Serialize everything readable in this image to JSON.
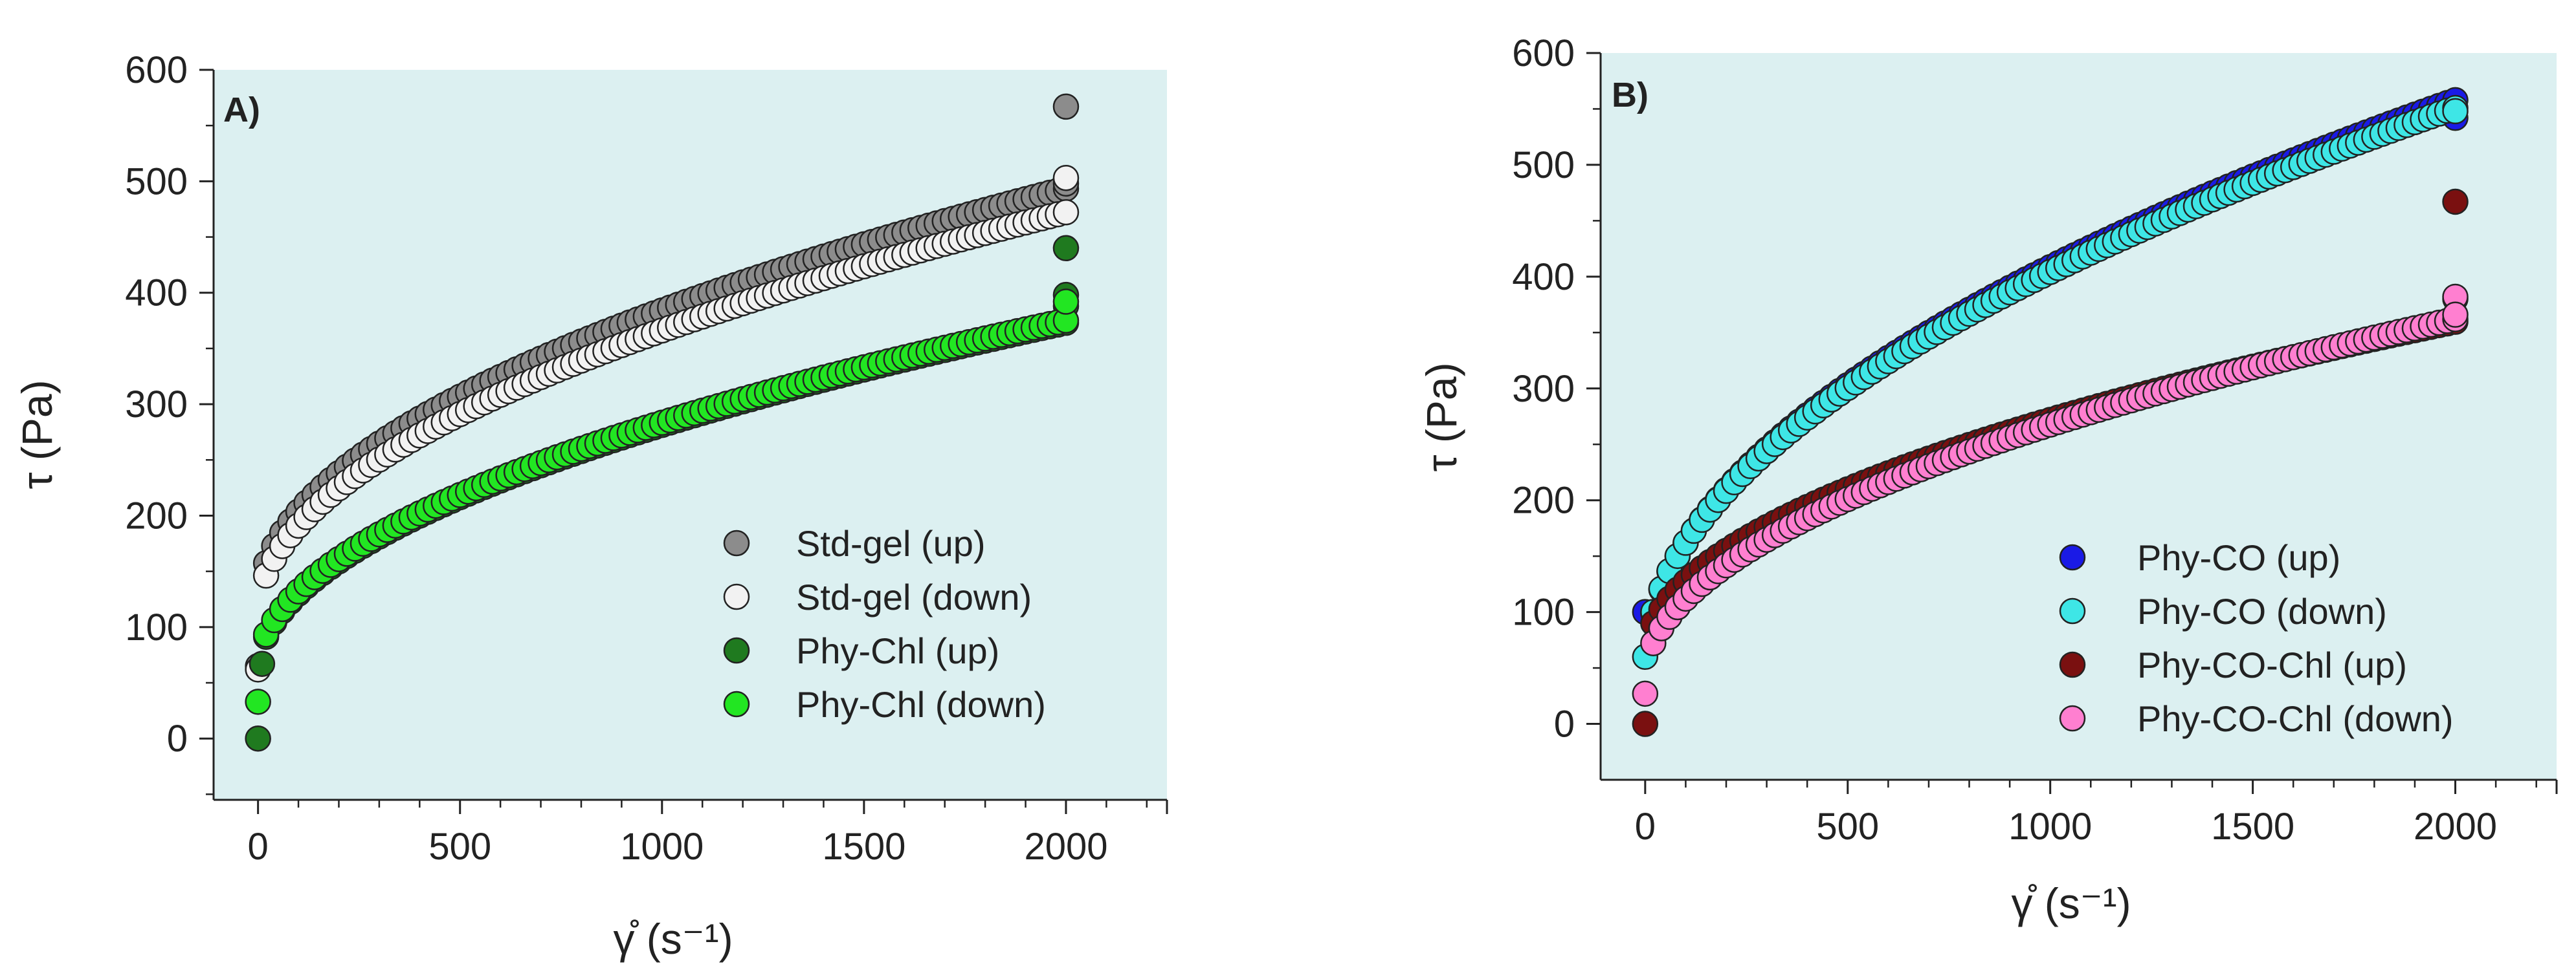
{
  "colors": {
    "plot_background": "#dcf0f1",
    "axis": "#222222",
    "marker_edge": "#222222"
  },
  "chart_data": [
    {
      "type": "scatter",
      "panel_label": "A)",
      "xlabel": "γ̊ (s⁻¹)",
      "ylabel": "τ (Pa)",
      "xlim": [
        -110,
        2250
      ],
      "ylim": [
        -55,
        600
      ],
      "xticks": [
        "0",
        "500",
        "1000",
        "1500",
        "2000"
      ],
      "yticks": [
        "0",
        "100",
        "200",
        "300",
        "400",
        "500",
        "600"
      ],
      "legend_position": "bottom-right",
      "series": [
        {
          "name": "Std-gel (up)",
          "color": "#8c8c8c",
          "model": {
            "start": [
              0,
              65
            ],
            "a": 120,
            "b": 8.35,
            "exp": 0.5
          },
          "end_points": [
            [
              2000,
              567
            ],
            [
              2000,
              498
            ]
          ]
        },
        {
          "name": "Std-gel (down)",
          "color": "#f2f2f2",
          "model": {
            "start": [
              0,
              62
            ],
            "a": 110,
            "b": 8.1,
            "exp": 0.5
          },
          "end_points": [
            [
              2000,
              503
            ]
          ]
        },
        {
          "name": "Phy-Chl (up)",
          "color": "#1f7a1f",
          "model": {
            "start": [
              0,
              0
            ],
            "a": 60,
            "b": 7.0,
            "exp": 0.5
          },
          "end_points": [
            [
              10,
              67
            ],
            [
              2000,
              440
            ],
            [
              2000,
              398
            ],
            [
              2000,
              388
            ]
          ]
        },
        {
          "name": "Phy-Chl (down)",
          "color": "#22e622",
          "model": {
            "start": [
              0,
              33
            ],
            "a": 62,
            "b": 7.0,
            "exp": 0.5
          },
          "end_points": [
            [
              2000,
              392
            ]
          ]
        }
      ]
    },
    {
      "type": "scatter",
      "panel_label": "B)",
      "xlabel": "γ̊ (s⁻¹)",
      "ylabel": "τ (Pa)",
      "xlim": [
        -110,
        2250
      ],
      "ylim": [
        -50,
        600
      ],
      "xticks": [
        "0",
        "500",
        "1000",
        "1500",
        "2000"
      ],
      "yticks": [
        "0",
        "100",
        "200",
        "300",
        "400",
        "500",
        "600"
      ],
      "legend_position": "bottom-right",
      "series": [
        {
          "name": "Phy-CO (up)",
          "color": "#1a1ae6",
          "model": {
            "start": [
              0,
              100
            ],
            "a": 48,
            "b": 11.4,
            "exp": 0.5
          },
          "end_points": [
            [
              2000,
              542
            ]
          ]
        },
        {
          "name": "Phy-CO (down)",
          "color": "#3ee6e6",
          "model": {
            "start": [
              0,
              60
            ],
            "a": 50,
            "b": 11.2,
            "exp": 0.5
          },
          "end_points": [
            [
              2000,
              548
            ]
          ]
        },
        {
          "name": "Phy-CO-Chl (up)",
          "color": "#7a1010",
          "model": {
            "start": [
              0,
              0
            ],
            "a": 60,
            "b": 6.7,
            "exp": 0.5
          },
          "end_points": [
            [
              2000,
              467
            ],
            [
              2000,
              380
            ]
          ]
        },
        {
          "name": "Phy-CO-Chl (down)",
          "color": "#ff7fd0",
          "model": {
            "start": [
              0,
              27
            ],
            "a": 40,
            "b": 7.2,
            "exp": 0.5
          },
          "end_points": [
            [
              2000,
              382
            ],
            [
              2000,
              366
            ]
          ]
        }
      ]
    }
  ]
}
